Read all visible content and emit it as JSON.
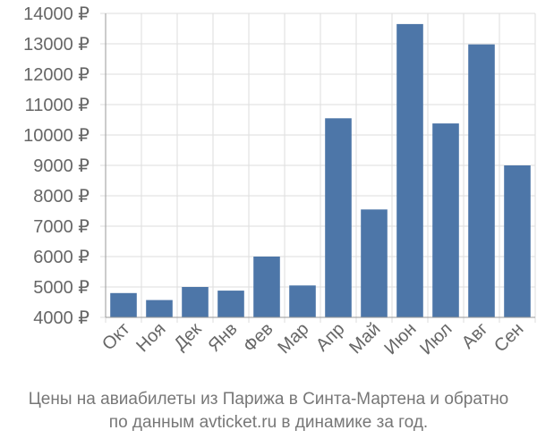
{
  "chart_data": {
    "type": "bar",
    "categories": [
      "Окт",
      "Ноя",
      "Дек",
      "Янв",
      "Фев",
      "Мар",
      "Апр",
      "Май",
      "Июн",
      "Июл",
      "Авг",
      "Сен"
    ],
    "values": [
      4800,
      4570,
      5000,
      4880,
      6000,
      5050,
      10550,
      7550,
      13650,
      10380,
      12980,
      9000
    ],
    "y_ticks": [
      "4000 ₽",
      "5000 ₽",
      "6000 ₽",
      "7000 ₽",
      "8000 ₽",
      "9000 ₽",
      "10000 ₽",
      "11000 ₽",
      "12000 ₽",
      "13000 ₽",
      "14000 ₽"
    ],
    "ylim": [
      4000,
      14000
    ],
    "ytick_step": 1000,
    "grid": true,
    "bar_color": "#4d76a8",
    "grid_color": "#dddddd",
    "axis_color": "#999999"
  },
  "caption": {
    "line1": "Цены на авиабилеты из Парижа в Синта-Мартена и обратно",
    "line2": "по данным avticket.ru в динамике за год."
  }
}
